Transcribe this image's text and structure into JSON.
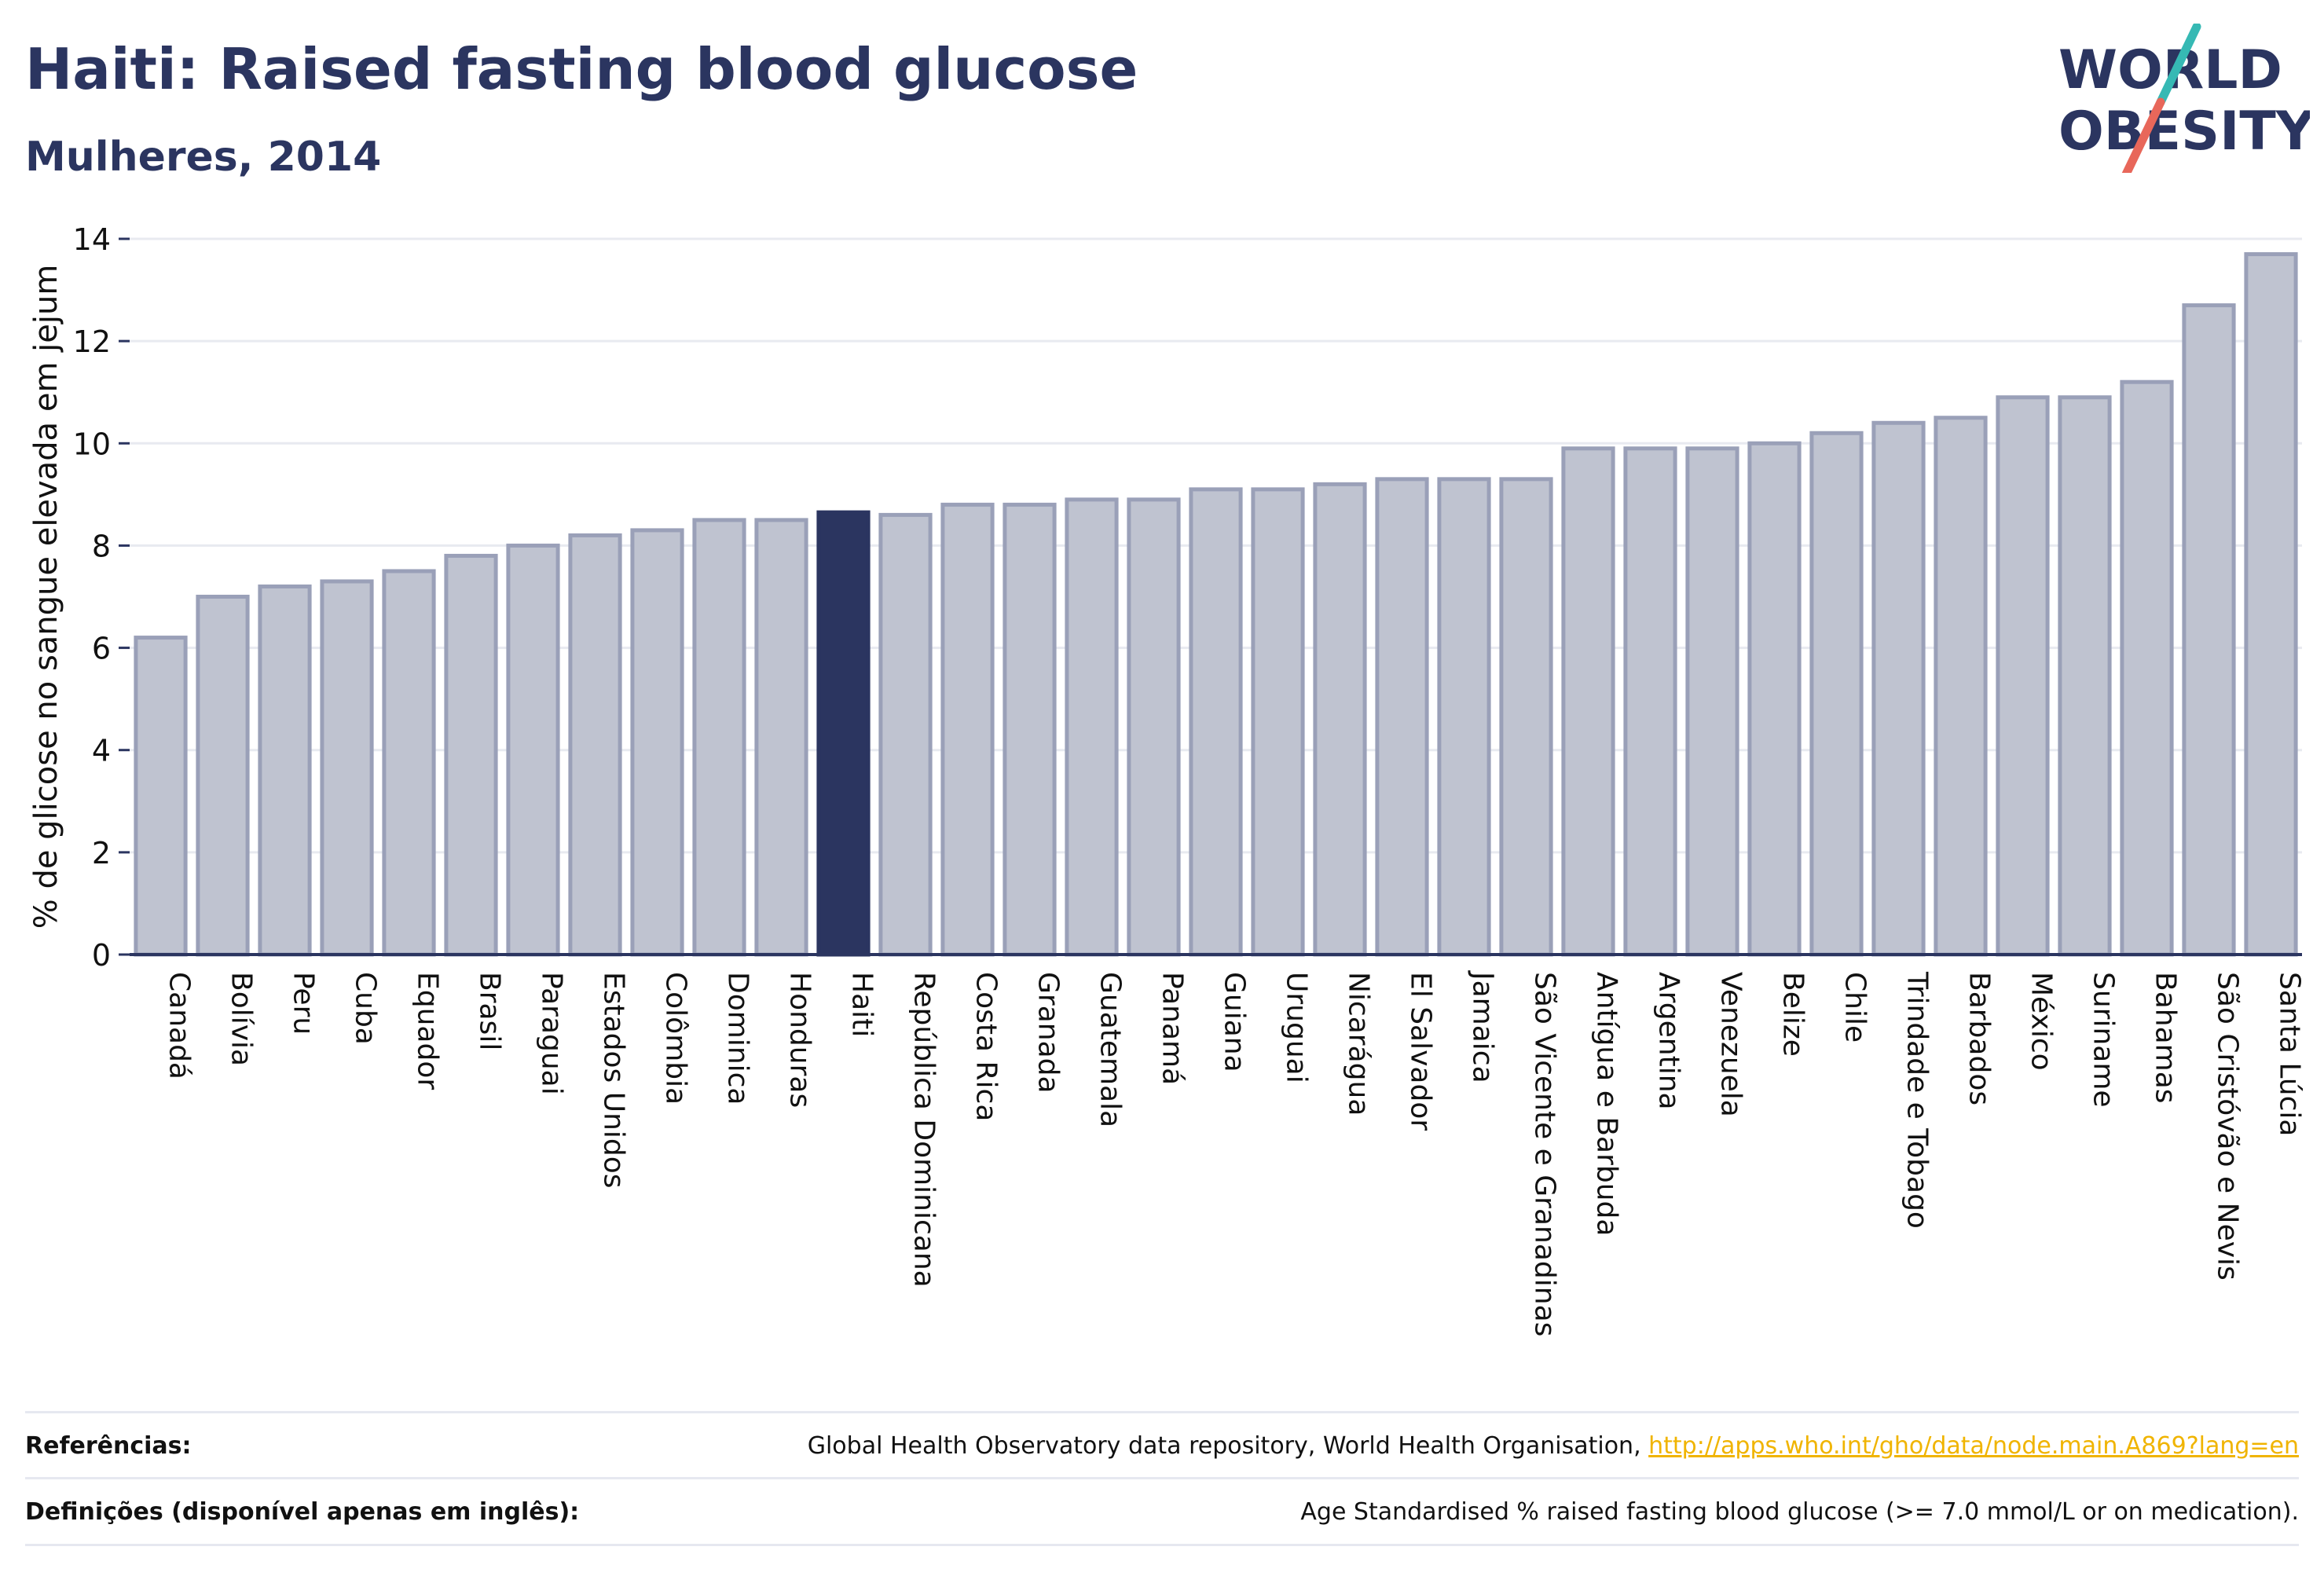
{
  "header": {
    "title": "Haiti: Raised fasting blood glucose",
    "subtitle": "Mulheres, 2014"
  },
  "logo": {
    "line1": "WORLD",
    "line2": "OBESITY"
  },
  "chart_data": {
    "type": "bar",
    "title": "Haiti: Raised fasting blood glucose",
    "subtitle": "Mulheres, 2014",
    "ylabel": "% de glicose no sangue elevada em jejum",
    "xlabel": "",
    "ylim": [
      0,
      14
    ],
    "yticks": [
      0,
      2,
      4,
      6,
      8,
      10,
      12,
      14
    ],
    "grid": true,
    "highlight": "Haiti",
    "colors": {
      "bar": "#bfc3d0",
      "bar_edge": "#9aa0b8",
      "highlight": "#2b3560"
    },
    "categories": [
      "Canadá",
      "Bolívia",
      "Peru",
      "Cuba",
      "Equador",
      "Brasil",
      "Paraguai",
      "Estados Unidos",
      "Colômbia",
      "Dominica",
      "Honduras",
      "Haiti",
      "República Dominicana",
      "Costa Rica",
      "Granada",
      "Guatemala",
      "Panamá",
      "Guiana",
      "Uruguai",
      "Nicarágua",
      "El Salvador",
      "Jamaica",
      "São Vicente e Granadinas",
      "Antígua e Barbuda",
      "Argentina",
      "Venezuela",
      "Belize",
      "Chile",
      "Trindade e Tobago",
      "Barbados",
      "México",
      "Suriname",
      "Bahamas",
      "São Cristóvão e Nevis",
      "Santa Lúcia"
    ],
    "values": [
      6.2,
      7.0,
      7.2,
      7.3,
      7.5,
      7.8,
      8.0,
      8.2,
      8.3,
      8.5,
      8.5,
      8.65,
      8.6,
      8.8,
      8.8,
      8.9,
      8.9,
      9.1,
      9.1,
      9.2,
      9.3,
      9.3,
      9.3,
      9.9,
      9.9,
      9.9,
      10.0,
      10.2,
      10.4,
      10.5,
      10.9,
      10.9,
      11.2,
      12.7,
      13.7
    ]
  },
  "footer": {
    "references_label": "Referências:",
    "references_text": "Global Health Observatory data repository, World Health Organisation, ",
    "references_link": "http://apps.who.int/gho/data/node.main.A869?lang=en",
    "definitions_label": "Definições (disponível apenas em inglês):",
    "definitions_text": "Age Standardised % raised fasting blood glucose (>= 7.0 mmol/L or on medication)."
  }
}
